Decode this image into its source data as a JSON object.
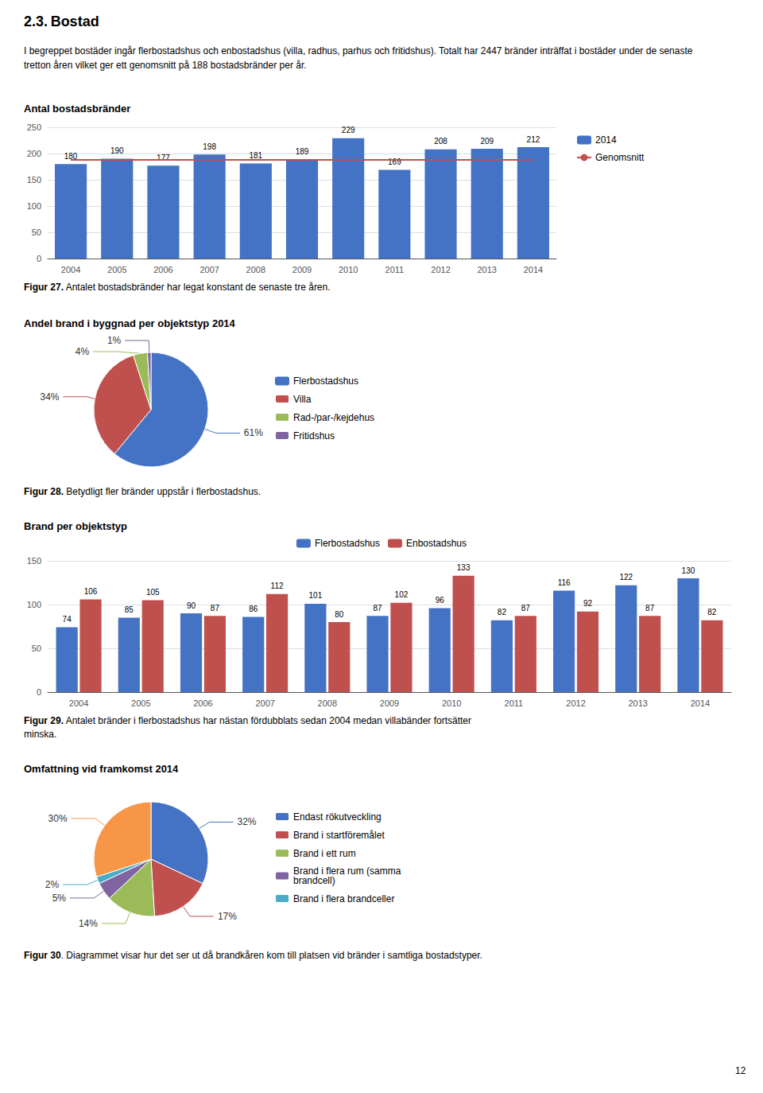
{
  "title": "2.3. Bostad",
  "text": "I begreppet bostäder ingår flerbostadshus och enbostadshus (villa, radhus, parhus och fritidshus). Totalt har 2447 bränder inträffat i bostäder under de senaste tretton åren vilket ger ett genomsnitt på 188 bostadsbränder per år.",
  "page_number": "12",
  "chart_data": [
    {
      "type": "bar",
      "title": "Antal bostadsbränder",
      "categories": [
        "2004",
        "2005",
        "2006",
        "2007",
        "2008",
        "2009",
        "2010",
        "2011",
        "2012",
        "2013",
        "2014"
      ],
      "series": [
        {
          "name": "2014",
          "type": "bar",
          "color": "#4472C4",
          "values": [
            180,
            190,
            177,
            198,
            181,
            189,
            229,
            169,
            208,
            209,
            212
          ],
          "data_labels": true
        },
        {
          "name": "Genomsnitt",
          "type": "line",
          "color": "#C0504D",
          "values": [
            188,
            188,
            188,
            188,
            188,
            188,
            188,
            188,
            188,
            188,
            188
          ]
        }
      ],
      "ylim": [
        0,
        250
      ],
      "yticks": [
        0,
        50,
        100,
        150,
        200,
        250
      ],
      "grid": true,
      "legend": "right",
      "caption": {
        "bold": "Figur 27.",
        "lines": [
          " Antalet bostadsbränder har legat konstant de senaste tre åren."
        ]
      }
    },
    {
      "type": "pie",
      "title": "Andel brand i byggnad per objektstyp 2014",
      "categories": [
        "Flerbostadshus",
        "Villa",
        "Rad-/par-/kejdehus",
        "Fritidshus"
      ],
      "values": [
        61,
        34,
        4,
        1
      ],
      "value_labels": [
        "61%",
        "34%",
        "4%",
        "1%"
      ],
      "colors": [
        "#4472C4",
        "#C0504D",
        "#9BBB59",
        "#8064A2"
      ],
      "data_labels": true,
      "legend": "right",
      "caption": {
        "bold": "Figur 28.",
        "lines": [
          " Betydligt fler bränder uppstår i flerbostadshus."
        ]
      }
    },
    {
      "type": "bar",
      "title": "Brand per objektstyp",
      "categories": [
        "2004",
        "2005",
        "2006",
        "2007",
        "2008",
        "2009",
        "2010",
        "2011",
        "2012",
        "2013",
        "2014"
      ],
      "series": [
        {
          "name": "Flerbostadshus",
          "color": "#4472C4",
          "values": [
            74,
            85,
            90,
            86,
            101,
            87,
            96,
            82,
            116,
            122,
            130
          ]
        },
        {
          "name": "Enbostadshus",
          "color": "#C0504D",
          "values": [
            106,
            105,
            87,
            112,
            80,
            102,
            133,
            87,
            92,
            87,
            82
          ]
        }
      ],
      "ylim": [
        0,
        150
      ],
      "yticks": [
        0,
        50,
        100,
        150
      ],
      "grid": true,
      "legend": "top",
      "data_labels": true,
      "caption": {
        "bold": "Figur 29.",
        "lines": [
          " Antalet bränder i flerbostadshus har nästan fördubblats sedan 2004 medan villabänder fortsätter",
          "minska."
        ]
      }
    },
    {
      "type": "pie",
      "title": "Omfattning vid framkomst 2014",
      "categories": [
        "Endast rökutveckling",
        "Brand i startföremålet",
        "Brand i ett rum",
        "Brand i flera rum (samma\nbrandcell)",
        "Brand i flera brandceller",
        null
      ],
      "values": [
        32,
        17,
        14,
        5,
        2,
        30
      ],
      "value_labels": [
        "32%",
        "17%",
        "14%",
        "5%",
        "2%",
        "30%"
      ],
      "colors": [
        "#4472C4",
        "#C0504D",
        "#9BBB59",
        "#8064A2",
        "#4BACC6",
        "#F79646"
      ],
      "data_labels": true,
      "legend": "right",
      "caption": {
        "bold": "Figur 30",
        "lines": [
          ". Diagrammet visar hur det ser ut då brandkåren kom till platsen vid bränder i samtliga bostadstyper."
        ]
      }
    }
  ]
}
